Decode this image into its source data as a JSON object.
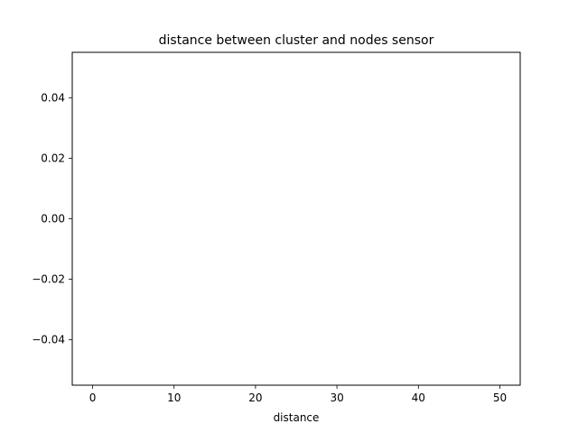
{
  "chart_data": {
    "type": "line",
    "title": "distance between cluster and nodes sensor",
    "xlabel": "distance",
    "ylabel": "",
    "xlim": [
      -2.5,
      52.5
    ],
    "ylim": [
      -0.055,
      0.055
    ],
    "xticks": [
      0,
      10,
      20,
      30,
      40,
      50
    ],
    "xtick_labels": [
      "0",
      "10",
      "20",
      "30",
      "40",
      "50"
    ],
    "yticks": [
      -0.04,
      -0.02,
      0.0,
      0.02,
      0.04
    ],
    "ytick_labels": [
      "−0.04",
      "−0.02",
      "0.00",
      "0.02",
      "0.04"
    ],
    "grid": false,
    "series": []
  }
}
